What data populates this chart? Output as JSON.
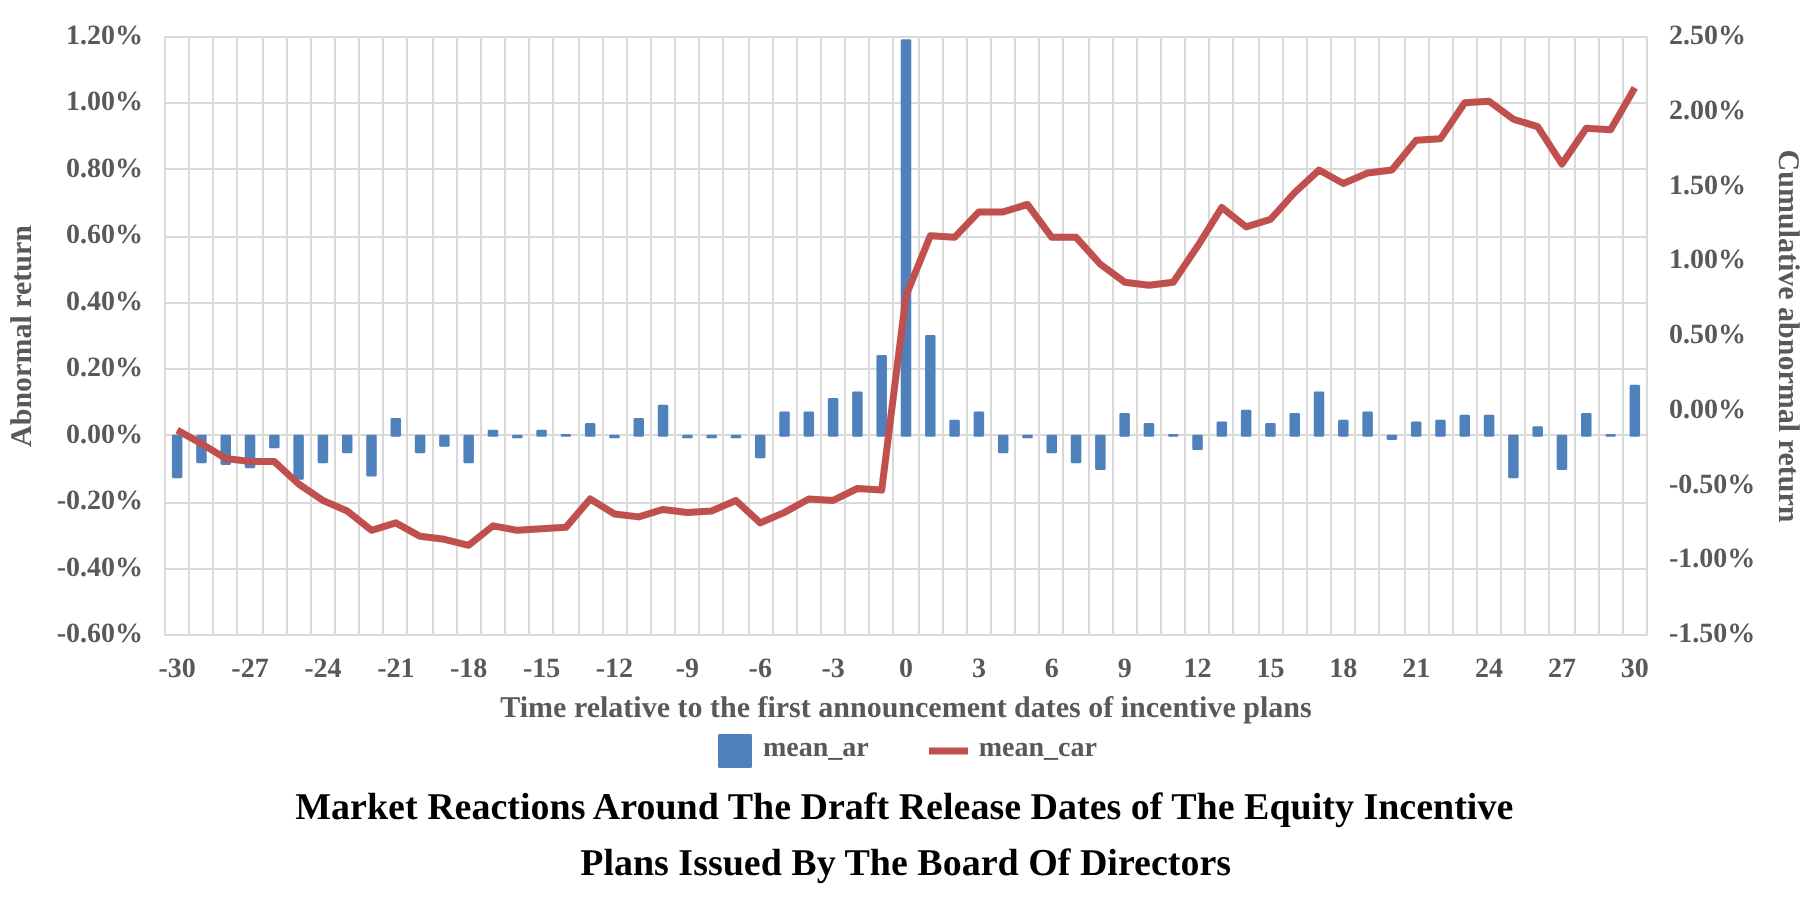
{
  "chart_data": {
    "type": "bar",
    "title": "Market Reactions Around The Draft Release Dates of The Equity Incentive\nPlans Issued By The Board Of Directors",
    "xlabel": "Time relative to the first announcement dates of incentive plans",
    "ylabel": "Abnormal return",
    "y2label": "Cumulative abnormal return",
    "categories": [
      "-30",
      null,
      null,
      "-27",
      null,
      null,
      "-24",
      null,
      null,
      "-21",
      null,
      null,
      "-18",
      null,
      null,
      "-15",
      null,
      null,
      "-12",
      null,
      null,
      "-9",
      null,
      null,
      "-6",
      null,
      null,
      "-3",
      null,
      null,
      "0",
      null,
      null,
      "3",
      null,
      null,
      "6",
      null,
      null,
      "9",
      null,
      null,
      "12",
      null,
      null,
      "15",
      null,
      null,
      "18",
      null,
      null,
      "21",
      null,
      null,
      "24",
      null,
      null,
      "27",
      null,
      null,
      "30"
    ],
    "series": [
      {
        "name": "mean_ar",
        "color": "#4f81bd",
        "values": [
          -0.125,
          -0.08,
          -0.085,
          -0.095,
          -0.035,
          -0.13,
          -0.08,
          -0.05,
          -0.12,
          0.05,
          -0.05,
          -0.03,
          -0.08,
          0.015,
          -0.005,
          0.015,
          0.002,
          0.035,
          -0.005,
          0.05,
          0.09,
          -0.005,
          -0.005,
          -0.005,
          -0.065,
          0.07,
          0.07,
          0.11,
          0.13,
          0.24,
          1.19,
          0.3,
          0.045,
          0.07,
          -0.05,
          -0.005,
          -0.05,
          -0.08,
          -0.1,
          0.065,
          0.035,
          0.002,
          -0.04,
          0.04,
          0.075,
          0.035,
          0.065,
          0.13,
          0.045,
          0.07,
          -0.01,
          0.04,
          0.045,
          0.06,
          0.06,
          -0.125,
          0.025,
          -0.1,
          0.065,
          0.002,
          0.15
        ]
      },
      {
        "name": "mean_car",
        "type": "line",
        "axis": "y2",
        "color": "#c0504d",
        "values": [
          -0.13,
          -0.22,
          -0.32,
          -0.34,
          -0.34,
          -0.49,
          -0.6,
          -0.67,
          -0.8,
          -0.75,
          -0.84,
          -0.86,
          -0.9,
          -0.77,
          -0.8,
          -0.79,
          -0.78,
          -0.59,
          -0.69,
          -0.71,
          -0.66,
          -0.68,
          -0.67,
          -0.6,
          -0.75,
          -0.68,
          -0.59,
          -0.6,
          -0.52,
          -0.53,
          0.77,
          1.17,
          1.16,
          1.33,
          1.33,
          1.38,
          1.16,
          1.16,
          0.98,
          0.86,
          0.84,
          0.86,
          1.1,
          1.36,
          1.23,
          1.28,
          1.46,
          1.61,
          1.52,
          1.59,
          1.61,
          1.81,
          1.82,
          2.06,
          2.07,
          1.95,
          1.9,
          1.65,
          1.89,
          1.88,
          2.16
        ]
      }
    ],
    "ylim": [
      -0.6,
      1.2
    ],
    "yticks": [
      {
        "value": -0.6,
        "label": "-0.60%"
      },
      {
        "value": -0.4,
        "label": "-0.40%"
      },
      {
        "value": -0.2,
        "label": "-0.20%"
      },
      {
        "value": 0,
        "label": "0.00%"
      },
      {
        "value": 0.2,
        "label": "0.20%"
      },
      {
        "value": 0.4,
        "label": "0.40%"
      },
      {
        "value": 0.6,
        "label": "0.60%"
      },
      {
        "value": 0.8,
        "label": "0.80%"
      },
      {
        "value": 1.0,
        "label": "1.00%"
      },
      {
        "value": 1.2,
        "label": "1.20%"
      }
    ],
    "y2lim": [
      -1.5,
      2.5
    ],
    "y2ticks": [
      {
        "value": -1.5,
        "label": "-1.50%"
      },
      {
        "value": -1.0,
        "label": "-1.00%"
      },
      {
        "value": -0.5,
        "label": "-0.50%"
      },
      {
        "value": 0,
        "label": "0.00%"
      },
      {
        "value": 0.5,
        "label": "0.50%"
      },
      {
        "value": 1.0,
        "label": "1.00%"
      },
      {
        "value": 1.5,
        "label": "1.50%"
      },
      {
        "value": 2.0,
        "label": "2.00%"
      },
      {
        "value": 2.5,
        "label": "2.50%"
      }
    ],
    "grid": true,
    "legend": "bottom",
    "line_style": "solid",
    "marker": "none"
  }
}
